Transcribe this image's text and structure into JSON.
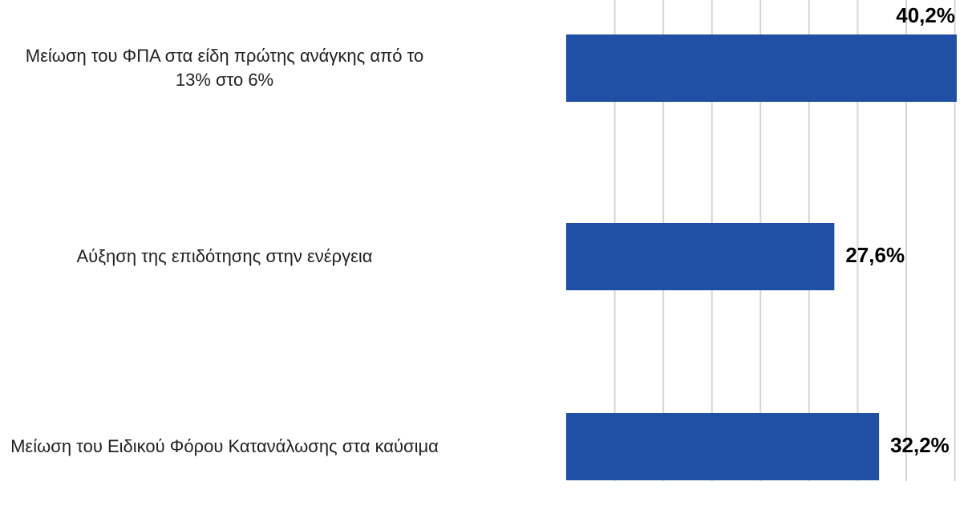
{
  "chart_data": {
    "type": "bar",
    "orientation": "horizontal",
    "categories": [
      "Μείωση του ΦΠΑ στα είδη πρώτης ανάγκης από το 13% στο 6%",
      "Αύξηση της επιδότησης στην ενέργεια",
      "Μείωση του Ειδικού Φόρου Κατανάλωσης στα καύσιμα"
    ],
    "values": [
      40.2,
      27.6,
      32.2
    ],
    "value_labels": [
      "40,2%",
      "27,6%",
      "32,2%"
    ],
    "color": "#1f50a6",
    "xlim": [
      0,
      40.2
    ],
    "xticks": [
      5,
      10,
      15,
      20,
      25,
      30,
      35,
      40
    ],
    "grid": true
  }
}
